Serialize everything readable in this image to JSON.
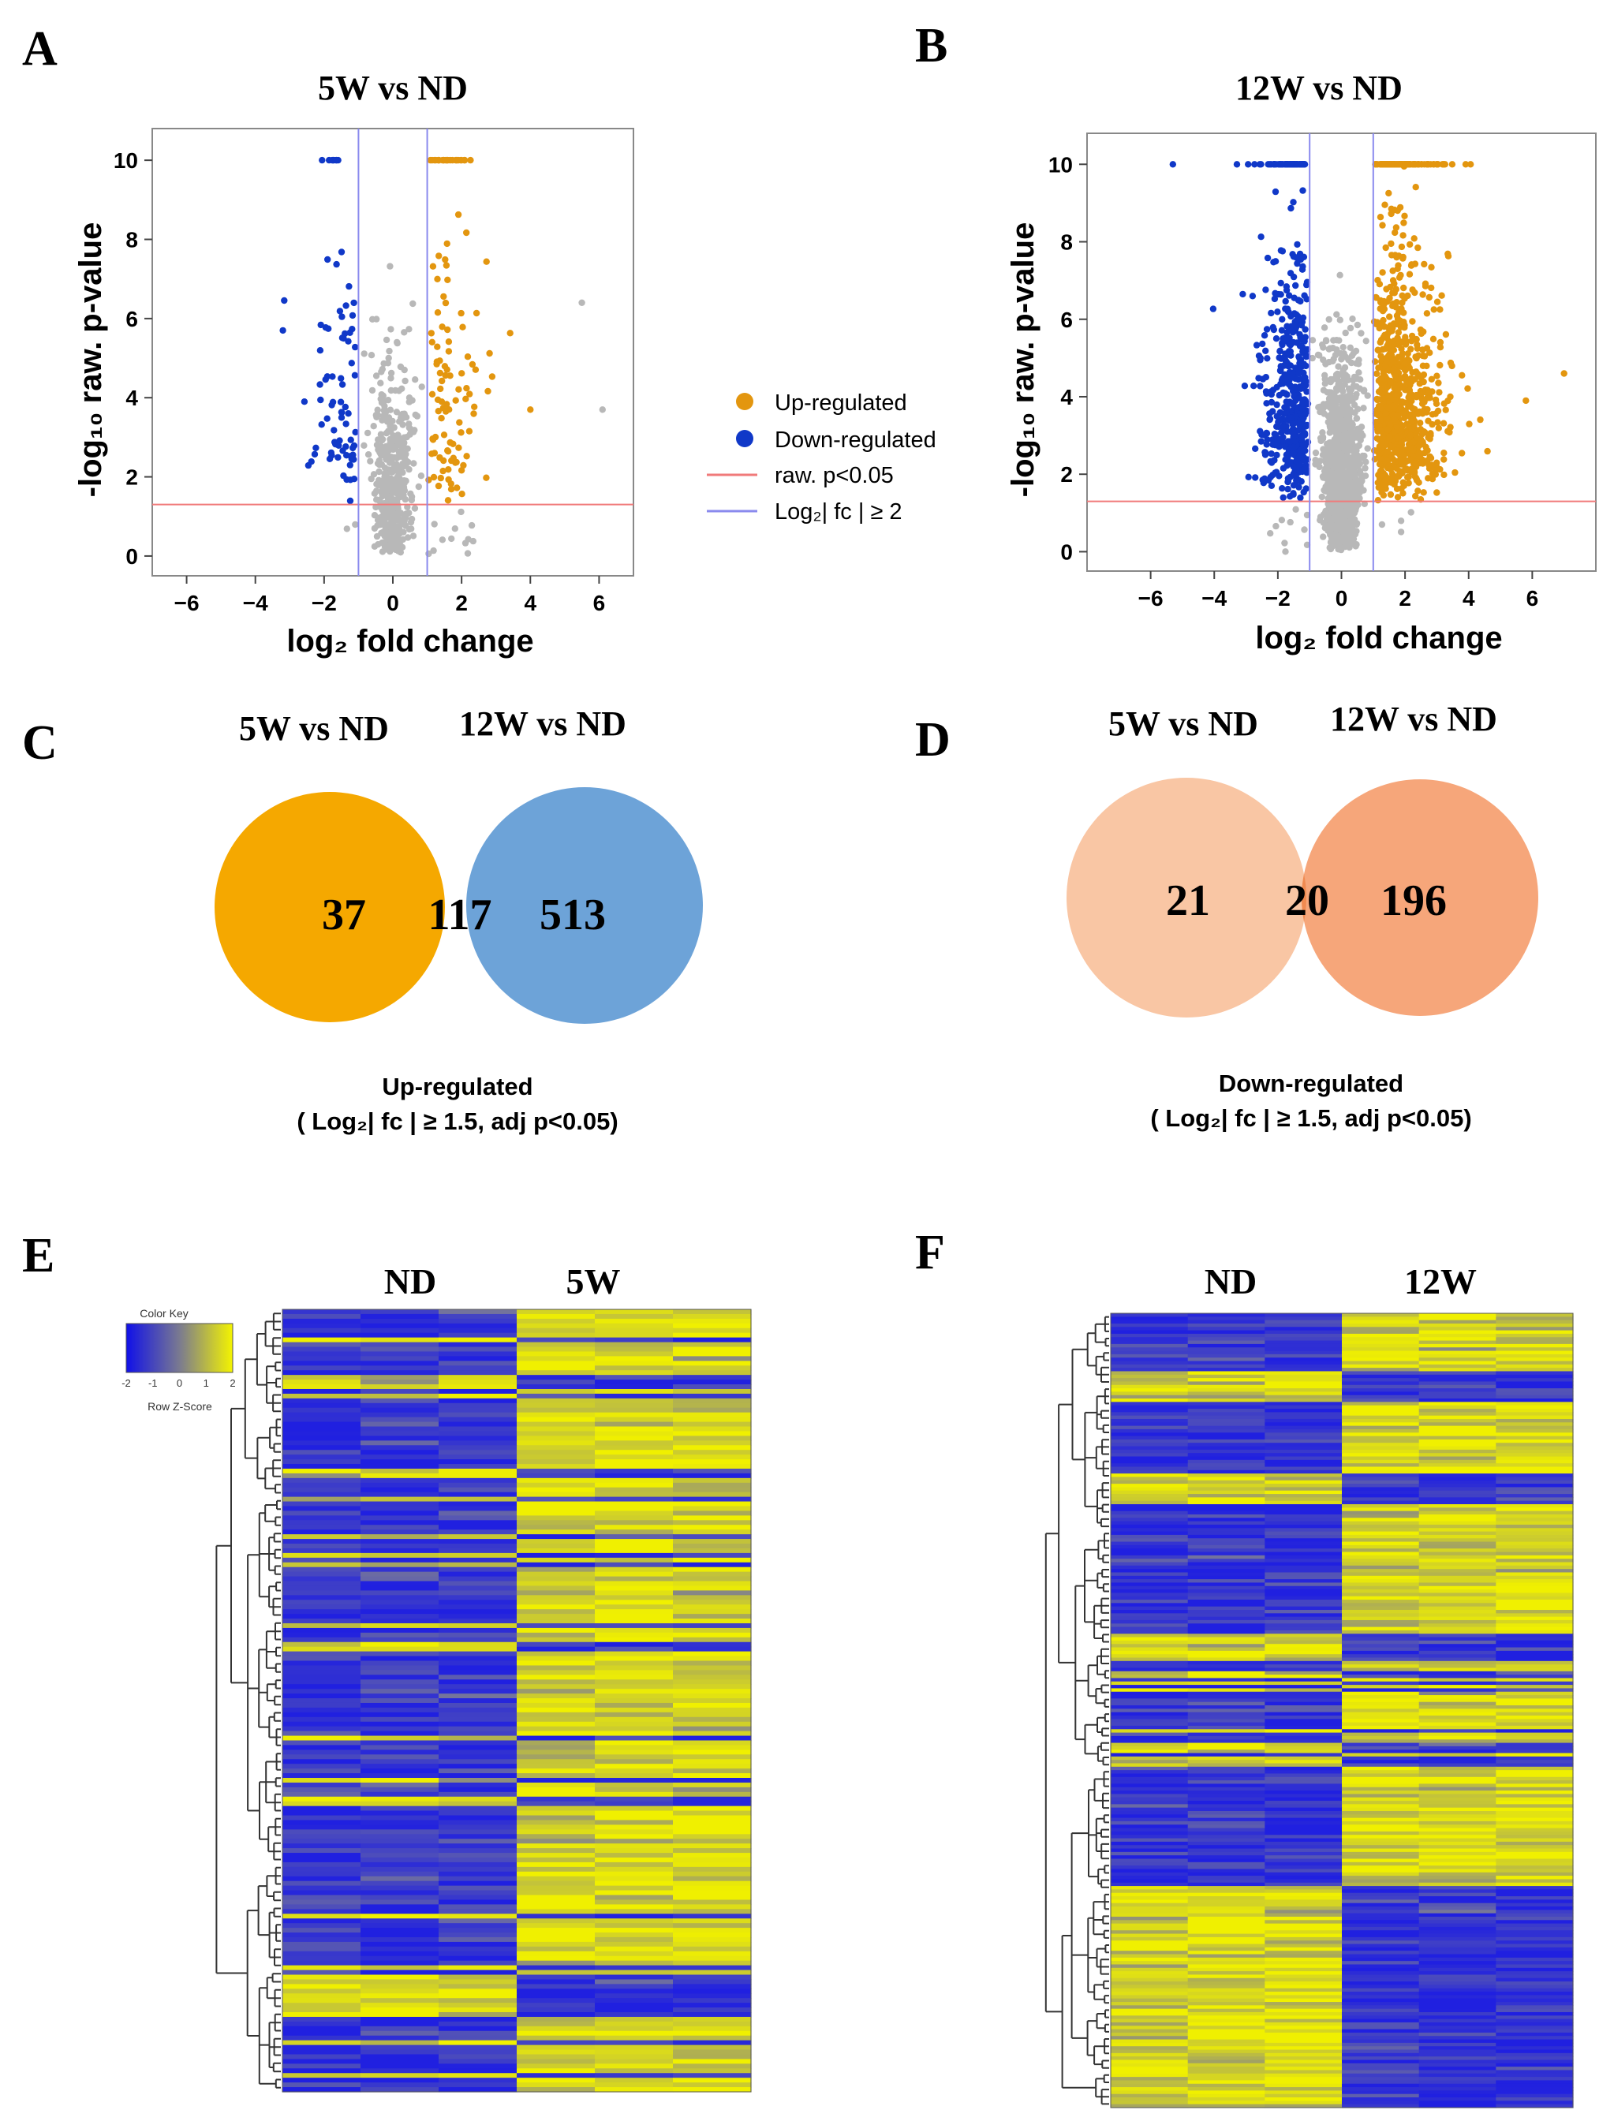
{
  "panels": [
    {
      "id": "A",
      "letter": "A"
    },
    {
      "id": "B",
      "letter": "B"
    },
    {
      "id": "C",
      "letter": "C"
    },
    {
      "id": "D",
      "letter": "D"
    },
    {
      "id": "E",
      "letter": "E"
    },
    {
      "id": "F",
      "letter": "F"
    }
  ],
  "legend": {
    "up": "Up-regulated",
    "down": "Down-regulated",
    "pval": "raw. p<0.05",
    "fc": "Log₂| fc | ≥ 2"
  },
  "colors": {
    "up": "#E3960F",
    "down": "#1038C8",
    "ns": "#B8B8B8",
    "pline": "#F07A7A",
    "fcline": "#8A8AEE",
    "vennC_left": "#F5A800",
    "vennC_right": "#6DA3D8",
    "vennC_mid": "#8A7D4A",
    "vennD_left": "#F9C6A4",
    "vennD_right": "#F6A67A",
    "vennD_mid": "#F08A50",
    "heat_low": "#2020E0",
    "heat_mid": "#7A7A9A",
    "heat_high": "#F0F000"
  },
  "chart_data": [
    {
      "id": "A",
      "type": "scatter",
      "title": "5W vs ND",
      "xlabel": "log₂ fold change",
      "ylabel": "-log₁₀ raw. p-value",
      "xlim": [
        -7,
        7
      ],
      "ylim": [
        -0.5,
        10.8
      ],
      "xticks": [
        "-6",
        "-4",
        "-2",
        "0",
        "2",
        "4",
        "6"
      ],
      "yticks": [
        "0",
        "2",
        "4",
        "6",
        "8",
        "10"
      ],
      "thresholds": {
        "log2fc": [
          -1,
          1
        ],
        "neglog10p": 1.3
      },
      "counts": {
        "up": 120,
        "down": 80,
        "ns": 500
      },
      "x_spread": {
        "up": 1.2,
        "down": 0.9
      },
      "outliers": [
        {
          "x": 5.5,
          "y": 6.4,
          "group": "ns"
        },
        {
          "x": 6.1,
          "y": 3.7,
          "group": "ns"
        },
        {
          "x": -3.2,
          "y": 5.7,
          "group": "down"
        },
        {
          "x": 4.0,
          "y": 3.7,
          "group": "up"
        }
      ]
    },
    {
      "id": "B",
      "type": "scatter",
      "title": "12W vs ND",
      "xlabel": "log₂ fold change",
      "ylabel": "-log₁₀ raw. p-value",
      "xlim": [
        -8,
        8
      ],
      "ylim": [
        -0.5,
        10.8
      ],
      "xticks": [
        "-6",
        "-4",
        "-2",
        "0",
        "2",
        "4",
        "6"
      ],
      "yticks": [
        "0",
        "2",
        "4",
        "6",
        "8",
        "10"
      ],
      "thresholds": {
        "log2fc": [
          -1,
          1
        ],
        "neglog10p": 1.3
      },
      "counts": {
        "up": 900,
        "down": 550,
        "ns": 1300
      },
      "x_spread": {
        "up": 1.6,
        "down": 1.1
      },
      "outliers": [
        {
          "x": 7.0,
          "y": 4.6,
          "group": "up"
        },
        {
          "x": 5.8,
          "y": 3.9,
          "group": "up"
        },
        {
          "x": -5.3,
          "y": 10,
          "group": "down"
        }
      ]
    },
    {
      "id": "C",
      "type": "venn",
      "left_label": "5W vs ND",
      "right_label": "12W vs ND",
      "left_only": 37,
      "both": 117,
      "right_only": 513,
      "values": [
        "37",
        "117",
        "513"
      ],
      "caption": "Up-regulated",
      "criteria": "( Log₂| fc | ≥ 1.5, adj p<0.05)"
    },
    {
      "id": "D",
      "type": "venn",
      "left_label": "5W vs ND",
      "right_label": "12W vs ND",
      "left_only": 21,
      "both": 20,
      "right_only": 196,
      "values": [
        "21",
        "20",
        "196"
      ],
      "caption": "Down-regulated",
      "criteria": "( Log₂| fc | ≥ 1.5, adj p<0.05)"
    },
    {
      "id": "E",
      "type": "heatmap",
      "groups": [
        "ND",
        "5W"
      ],
      "columns": 6,
      "rows": 167,
      "colorkey": {
        "title": "Color Key",
        "ticks": [
          "-2",
          "-1",
          "0",
          "1",
          "2"
        ],
        "xlabel": "Row Z-Score",
        "range": [
          -2,
          2
        ]
      }
    },
    {
      "id": "F",
      "type": "heatmap",
      "groups": [
        "ND",
        "12W"
      ],
      "columns": 6,
      "rows": 233
    }
  ]
}
